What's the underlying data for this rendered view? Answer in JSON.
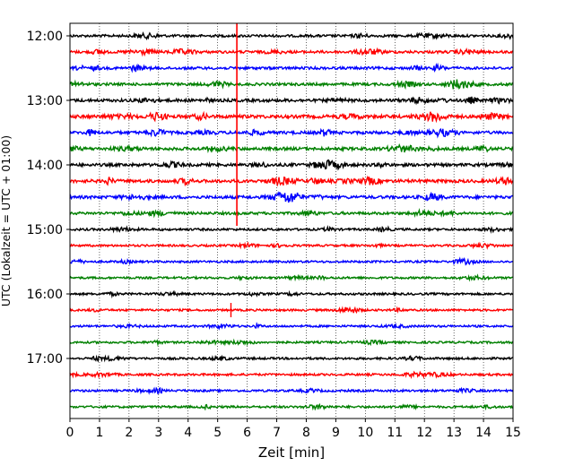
{
  "chart_data": {
    "type": "line",
    "title": "",
    "xlabel": "Zeit  [min]",
    "ylabel": "UTC (Lokalzeit = UTC + 01:00)",
    "xlim": [
      0,
      15
    ],
    "x_ticks": [
      "0",
      "1",
      "2",
      "3",
      "4",
      "5",
      "6",
      "7",
      "8",
      "9",
      "10",
      "11",
      "12",
      "13",
      "14",
      "15"
    ],
    "y_ticks": [
      "12:00",
      "13:00",
      "14:00",
      "15:00",
      "16:00",
      "17:00"
    ],
    "grid": "vertical dotted lines at each minute",
    "trace_interval_min": 15,
    "trace_colors": [
      "#000000",
      "#ff0000",
      "#0000ff",
      "#008000"
    ],
    "traces": [
      {
        "start": "12:00",
        "activity": 0.5
      },
      {
        "start": "12:15",
        "activity": 0.6
      },
      {
        "start": "12:30",
        "activity": 0.6
      },
      {
        "start": "12:45",
        "activity": 0.6
      },
      {
        "start": "13:00",
        "activity": 0.8
      },
      {
        "start": "13:15",
        "activity": 1.0
      },
      {
        "start": "13:30",
        "activity": 0.8
      },
      {
        "start": "13:45",
        "activity": 0.8
      },
      {
        "start": "14:00",
        "activity": 0.8
      },
      {
        "start": "14:15",
        "activity": 0.9
      },
      {
        "start": "14:30",
        "activity": 0.8
      },
      {
        "start": "14:45",
        "activity": 0.6
      },
      {
        "start": "15:00",
        "activity": 0.35
      },
      {
        "start": "15:15",
        "activity": 0.25
      },
      {
        "start": "15:30",
        "activity": 0.25
      },
      {
        "start": "15:45",
        "activity": 0.25
      },
      {
        "start": "16:00",
        "activity": 0.3
      },
      {
        "start": "16:15",
        "activity": 0.25
      },
      {
        "start": "16:30",
        "activity": 0.25
      },
      {
        "start": "16:45",
        "activity": 0.25
      },
      {
        "start": "17:00",
        "activity": 0.3
      },
      {
        "start": "17:15",
        "activity": 0.3
      },
      {
        "start": "17:30",
        "activity": 0.3
      },
      {
        "start": "17:45",
        "activity": 0.3
      }
    ],
    "events": [
      {
        "type": "vertical-marker",
        "x_min": 5.65,
        "from_trace": 0,
        "to_trace": 12,
        "color": "#ff0000"
      },
      {
        "type": "spike",
        "x_min": 5.45,
        "trace": 17,
        "color": "#ff0000"
      }
    ]
  }
}
